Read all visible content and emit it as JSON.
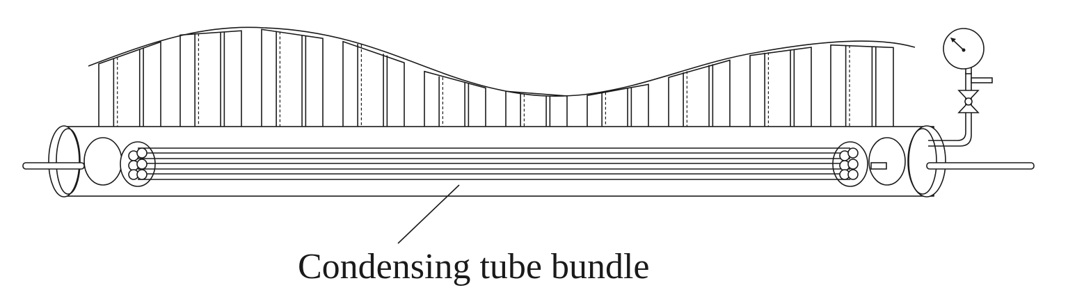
{
  "label": {
    "text": "Condensing tube bundle"
  },
  "colors": {
    "line": "#1a1a1a",
    "background": "#ffffff"
  },
  "components": [
    {
      "name": "cooling-fin-array",
      "icon": "fins"
    },
    {
      "name": "condenser-shell",
      "icon": "cylinder"
    },
    {
      "name": "tube-bundle",
      "icon": "tubes"
    },
    {
      "name": "pressure-gauge",
      "icon": "gauge-icon"
    },
    {
      "name": "valve",
      "icon": "valve-icon"
    },
    {
      "name": "inlet-pipe",
      "icon": "pipe"
    },
    {
      "name": "outlet-pipe",
      "icon": "pipe"
    }
  ]
}
